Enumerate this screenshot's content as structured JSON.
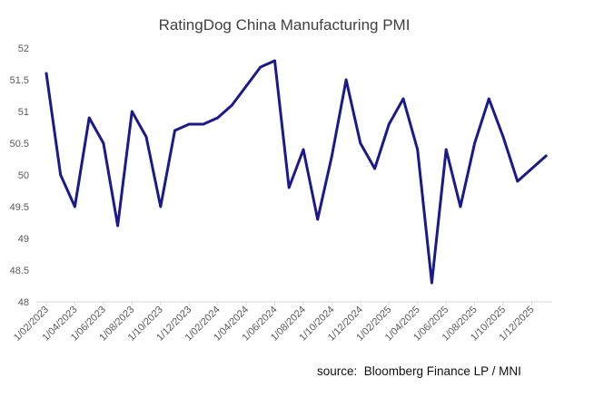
{
  "chart_data": {
    "type": "line",
    "title": "RatingDog China Manufacturing PMI",
    "xlabel": "",
    "ylabel": "",
    "ylim": [
      48,
      52
    ],
    "yticks": [
      48,
      48.5,
      49,
      49.5,
      50,
      50.5,
      51,
      51.5,
      52
    ],
    "grid": false,
    "legend": "none",
    "line_color": "#1a1a8c",
    "x_tick_labels": [
      "1/02/2023",
      "1/04/2023",
      "1/06/2023",
      "1/08/2023",
      "1/10/2023",
      "1/12/2023",
      "1/02/2024",
      "1/04/2024",
      "1/06/2024",
      "1/08/2024",
      "1/10/2024",
      "1/12/2024",
      "1/02/2025",
      "1/04/2025",
      "1/06/2025",
      "1/08/2025",
      "1/10/2025",
      "1/12/2025"
    ],
    "series": [
      {
        "name": "RatingDog China Manufacturing PMI",
        "values": [
          51.6,
          50.0,
          49.5,
          50.9,
          50.5,
          49.2,
          51.0,
          50.6,
          49.5,
          50.7,
          50.8,
          50.8,
          50.9,
          51.1,
          51.4,
          51.7,
          51.8,
          49.8,
          50.4,
          49.3,
          50.3,
          51.5,
          50.5,
          50.1,
          50.8,
          51.2,
          50.4,
          48.3,
          50.4,
          49.5,
          50.5,
          51.2,
          50.6,
          49.9,
          50.1,
          50.3
        ]
      }
    ]
  },
  "source_text": "source:  Bloomberg Finance LP / MNI"
}
